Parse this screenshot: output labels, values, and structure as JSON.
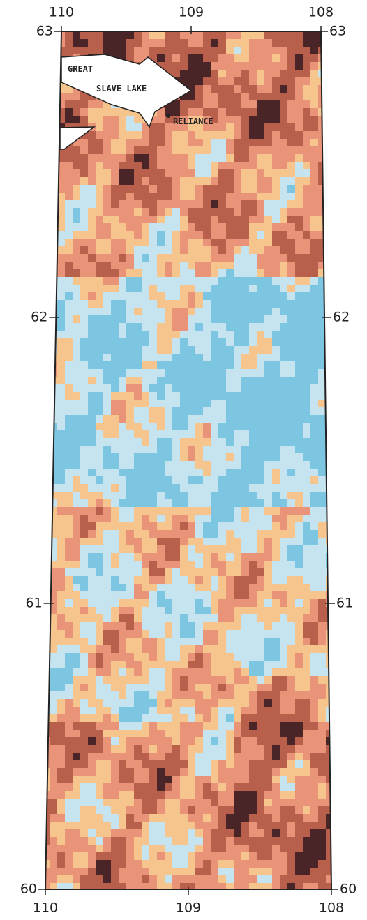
{
  "map": {
    "xlim": [
      110,
      108
    ],
    "ylim": [
      60,
      63
    ],
    "xticks": [
      110,
      109,
      108
    ],
    "yticks": [
      63,
      62,
      61,
      60
    ],
    "labels": {
      "great": "GREAT",
      "slave_lake": "SLAVE LAKE",
      "reliance": "RELIANCE"
    }
  }
}
